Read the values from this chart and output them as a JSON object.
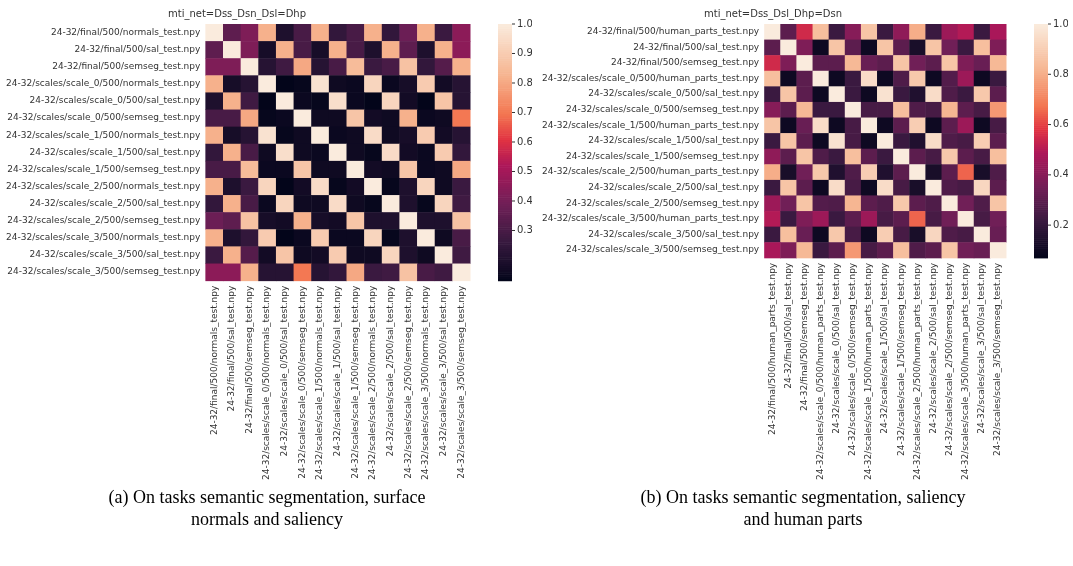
{
  "chart_data": [
    {
      "type": "heatmap",
      "title": "mti_net=Dss_Dsn_Dsl=Dhp",
      "categories": [
        "24-32/final/500/normals_test.npy",
        "24-32/final/500/sal_test.npy",
        "24-32/final/500/semseg_test.npy",
        "24-32/scales/scale_0/500/normals_test.npy",
        "24-32/scales/scale_0/500/sal_test.npy",
        "24-32/scales/scale_0/500/semseg_test.npy",
        "24-32/scales/scale_1/500/normals_test.npy",
        "24-32/scales/scale_1/500/sal_test.npy",
        "24-32/scales/scale_1/500/semseg_test.npy",
        "24-32/scales/scale_2/500/normals_test.npy",
        "24-32/scales/scale_2/500/sal_test.npy",
        "24-32/scales/scale_2/500/semseg_test.npy",
        "24-32/scales/scale_3/500/normals_test.npy",
        "24-32/scales/scale_3/500/sal_test.npy",
        "24-32/scales/scale_3/500/semseg_test.npy"
      ],
      "y_categories": [
        "24-32/final/500/normals_test.npy",
        "24-32/final/500/sal_test.npy",
        "24-32/final/500/semseg_test.npy",
        "24-32/scales/scale_0/500/normals_test.npy",
        "24-32/scales/scale_0/500/sal_test.npy",
        "24-32/scales/scale_0/500/semseg_test.npy",
        "24-32/scales/scale_1/500/normals_test.npy",
        "24-32/scales/scale_1/500/sal_test.npy",
        "24-32/scales/scale_1/500/semseg_test.npy",
        "24-32/scales/scale_2/500/normals_test.npy",
        "24-32/scales/scale_2/500/sal_test.npy",
        "24-32/scales/scale_2/500/semseg_test.npy",
        "24-32/scales/scale_3/500/normals_test.npy",
        "24-32/scales/scale_3/500/sal_test.npy",
        "24-32/scales/scale_3/500/semseg_test.npy"
      ],
      "cells": [
        [
          1.0,
          0.35,
          0.42,
          0.82,
          0.2,
          0.3,
          0.82,
          0.25,
          0.3,
          0.82,
          0.25,
          0.38,
          0.82,
          0.27,
          0.45
        ],
        [
          0.35,
          1.0,
          0.42,
          0.18,
          0.82,
          0.3,
          0.18,
          0.82,
          0.3,
          0.2,
          0.82,
          0.35,
          0.2,
          0.82,
          0.45
        ],
        [
          0.42,
          0.42,
          1.0,
          0.22,
          0.28,
          0.8,
          0.22,
          0.3,
          0.85,
          0.27,
          0.3,
          0.87,
          0.25,
          0.33,
          0.82
        ],
        [
          0.82,
          0.18,
          0.22,
          1.0,
          0.13,
          0.14,
          0.97,
          0.16,
          0.15,
          0.93,
          0.15,
          0.18,
          0.9,
          0.17,
          0.22
        ],
        [
          0.2,
          0.82,
          0.28,
          0.13,
          1.0,
          0.15,
          0.14,
          0.96,
          0.15,
          0.13,
          0.93,
          0.17,
          0.13,
          0.88,
          0.22
        ],
        [
          0.3,
          0.3,
          0.8,
          0.14,
          0.15,
          1.0,
          0.16,
          0.16,
          0.88,
          0.17,
          0.16,
          0.82,
          0.15,
          0.16,
          0.7
        ],
        [
          0.82,
          0.18,
          0.22,
          0.97,
          0.14,
          0.16,
          1.0,
          0.15,
          0.16,
          0.95,
          0.16,
          0.18,
          0.9,
          0.17,
          0.22
        ],
        [
          0.25,
          0.82,
          0.3,
          0.16,
          0.96,
          0.16,
          0.15,
          1.0,
          0.16,
          0.14,
          0.95,
          0.17,
          0.15,
          0.9,
          0.25
        ],
        [
          0.3,
          0.3,
          0.85,
          0.15,
          0.15,
          0.88,
          0.16,
          0.16,
          1.0,
          0.17,
          0.16,
          0.88,
          0.15,
          0.16,
          0.8
        ],
        [
          0.82,
          0.2,
          0.27,
          0.93,
          0.13,
          0.17,
          0.95,
          0.14,
          0.17,
          1.0,
          0.14,
          0.2,
          0.93,
          0.16,
          0.27
        ],
        [
          0.25,
          0.82,
          0.3,
          0.15,
          0.93,
          0.16,
          0.16,
          0.95,
          0.16,
          0.14,
          1.0,
          0.2,
          0.14,
          0.93,
          0.28
        ],
        [
          0.38,
          0.35,
          0.87,
          0.18,
          0.17,
          0.82,
          0.18,
          0.17,
          0.88,
          0.2,
          0.2,
          1.0,
          0.2,
          0.2,
          0.87
        ],
        [
          0.82,
          0.2,
          0.25,
          0.9,
          0.13,
          0.15,
          0.9,
          0.15,
          0.15,
          0.93,
          0.14,
          0.2,
          1.0,
          0.16,
          0.3
        ],
        [
          0.27,
          0.82,
          0.33,
          0.17,
          0.88,
          0.16,
          0.17,
          0.9,
          0.16,
          0.16,
          0.93,
          0.2,
          0.16,
          1.0,
          0.28
        ],
        [
          0.45,
          0.45,
          0.82,
          0.22,
          0.22,
          0.7,
          0.22,
          0.25,
          0.8,
          0.27,
          0.28,
          0.87,
          0.3,
          0.28,
          1.0
        ]
      ],
      "clim": [
        0.13,
        1.0
      ],
      "cticks": [
        0.3,
        0.4,
        0.5,
        0.6,
        0.7,
        0.8,
        0.9,
        {
          "value": 1.0,
          "label": "1.0"
        }
      ],
      "annotations": [
        "(a) On tasks semantic segmentation, surface normals and saliency"
      ]
    },
    {
      "type": "heatmap",
      "title": "mti_net=Dss_Dsl_Dhp=Dsn",
      "categories": [
        "24-32/final/500/human_parts_test.npy",
        "24-32/final/500/sal_test.npy",
        "24-32/final/500/semseg_test.npy",
        "24-32/scales/scale_0/500/human_parts_test.npy",
        "24-32/scales/scale_0/500/sal_test.npy",
        "24-32/scales/scale_0/500/semseg_test.npy",
        "24-32/scales/scale_1/500/human_parts_test.npy",
        "24-32/scales/scale_1/500/sal_test.npy",
        "24-32/scales/scale_1/500/semseg_test.npy",
        "24-32/scales/scale_2/500/human_parts_test.npy",
        "24-32/scales/scale_2/500/sal_test.npy",
        "24-32/scales/scale_2/500/semseg_test.npy",
        "24-32/scales/scale_3/500/human_parts_test.npy",
        "24-32/scales/scale_3/500/sal_test.npy",
        "24-32/scales/scale_3/500/semseg_test.npy"
      ],
      "y_categories": [
        "24-32/final/500/human_parts_test.npy",
        "24-32/final/500/sal_test.npy",
        "24-32/final/500/semseg_test.npy",
        "24-32/scales/scale_0/500/human_parts_test.npy",
        "24-32/scales/scale_0/500/sal_test.npy",
        "24-32/scales/scale_0/500/semseg_test.npy",
        "24-32/scales/scale_1/500/human_parts_test.npy",
        "24-32/scales/scale_1/500/sal_test.npy",
        "24-32/scales/scale_1/500/semseg_test.npy",
        "24-32/scales/scale_2/500/human_parts_test.npy",
        "24-32/scales/scale_2/500/sal_test.npy",
        "24-32/scales/scale_2/500/semseg_test.npy",
        "24-32/scales/scale_3/500/human_parts_test.npy",
        "24-32/scales/scale_3/500/sal_test.npy",
        "24-32/scales/scale_3/500/semseg_test.npy"
      ],
      "cells": [
        [
          1.0,
          0.3,
          0.55,
          0.85,
          0.22,
          0.4,
          0.87,
          0.22,
          0.42,
          0.8,
          0.22,
          0.45,
          0.5,
          0.22,
          0.48
        ],
        [
          0.3,
          1.0,
          0.38,
          0.1,
          0.87,
          0.3,
          0.1,
          0.87,
          0.3,
          0.13,
          0.87,
          0.35,
          0.22,
          0.85,
          0.38
        ],
        [
          0.55,
          0.38,
          1.0,
          0.3,
          0.3,
          0.83,
          0.33,
          0.3,
          0.87,
          0.35,
          0.3,
          0.87,
          0.38,
          0.33,
          0.83
        ],
        [
          0.85,
          0.1,
          0.3,
          1.0,
          0.1,
          0.22,
          0.95,
          0.1,
          0.27,
          0.88,
          0.1,
          0.28,
          0.45,
          0.1,
          0.22
        ],
        [
          0.22,
          0.87,
          0.3,
          0.1,
          1.0,
          0.22,
          0.1,
          0.97,
          0.22,
          0.15,
          0.95,
          0.27,
          0.22,
          0.88,
          0.3
        ],
        [
          0.4,
          0.3,
          0.83,
          0.22,
          0.22,
          1.0,
          0.25,
          0.25,
          0.85,
          0.27,
          0.25,
          0.82,
          0.3,
          0.25,
          0.75
        ],
        [
          0.87,
          0.1,
          0.33,
          0.95,
          0.1,
          0.25,
          1.0,
          0.1,
          0.3,
          0.9,
          0.1,
          0.3,
          0.45,
          0.1,
          0.25
        ],
        [
          0.22,
          0.87,
          0.3,
          0.1,
          0.97,
          0.25,
          0.1,
          1.0,
          0.22,
          0.15,
          0.95,
          0.27,
          0.25,
          0.9,
          0.3
        ],
        [
          0.42,
          0.3,
          0.87,
          0.27,
          0.22,
          0.85,
          0.3,
          0.22,
          1.0,
          0.3,
          0.25,
          0.88,
          0.3,
          0.25,
          0.85
        ],
        [
          0.8,
          0.13,
          0.35,
          0.88,
          0.15,
          0.27,
          0.9,
          0.15,
          0.3,
          1.0,
          0.13,
          0.3,
          0.65,
          0.13,
          0.27
        ],
        [
          0.22,
          0.87,
          0.3,
          0.1,
          0.95,
          0.25,
          0.1,
          0.95,
          0.25,
          0.13,
          1.0,
          0.27,
          0.25,
          0.93,
          0.3
        ],
        [
          0.45,
          0.35,
          0.87,
          0.28,
          0.27,
          0.82,
          0.3,
          0.27,
          0.88,
          0.3,
          0.27,
          1.0,
          0.35,
          0.27,
          0.87
        ],
        [
          0.5,
          0.22,
          0.38,
          0.45,
          0.22,
          0.3,
          0.45,
          0.25,
          0.3,
          0.65,
          0.25,
          0.35,
          1.0,
          0.25,
          0.35
        ],
        [
          0.22,
          0.85,
          0.33,
          0.1,
          0.88,
          0.25,
          0.1,
          0.9,
          0.25,
          0.13,
          0.93,
          0.27,
          0.25,
          1.0,
          0.33
        ],
        [
          0.48,
          0.38,
          0.83,
          0.22,
          0.3,
          0.75,
          0.25,
          0.3,
          0.85,
          0.27,
          0.3,
          0.87,
          0.35,
          0.33,
          1.0
        ]
      ],
      "clim": [
        0.07,
        1.0
      ],
      "cticks": [
        0.2,
        0.4,
        0.6,
        0.8,
        {
          "value": 1.0,
          "label": "1.0"
        }
      ],
      "annotations": [
        "(b) On tasks semantic segmentation, saliency and human parts"
      ]
    }
  ]
}
